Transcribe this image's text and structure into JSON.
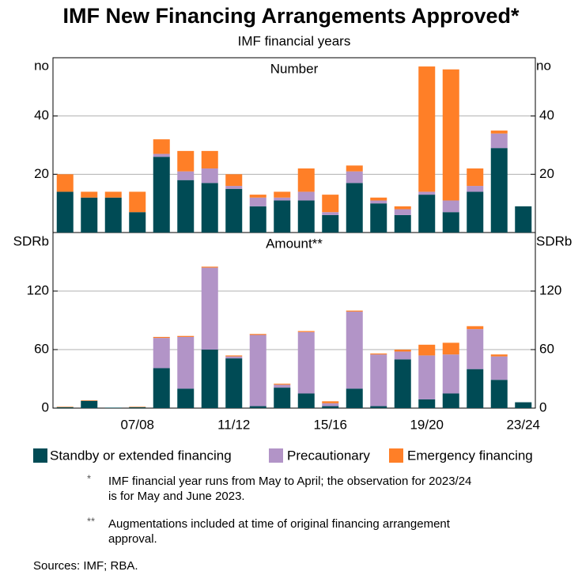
{
  "title": "IMF New Financing Arrangements Approved*",
  "subtitle": "IMF financial years",
  "chart_data": [
    {
      "type": "bar",
      "stacked": true,
      "panel_label": "Number",
      "unit": "no",
      "ylim": [
        0,
        60
      ],
      "yticks": [
        20,
        40
      ],
      "grid": true,
      "series": [
        {
          "name": "Standby or extended financing",
          "color": "#004b55",
          "values": [
            14,
            12,
            12,
            7,
            26,
            18,
            17,
            15,
            9,
            11,
            11,
            6,
            17,
            10,
            6,
            13,
            7,
            14,
            29,
            9
          ]
        },
        {
          "name": "Precautionary",
          "color": "#b294c7",
          "values": [
            0,
            0,
            0,
            0,
            1,
            3,
            5,
            1,
            3,
            1,
            3,
            1,
            4,
            1,
            2,
            1,
            4,
            2,
            5,
            0
          ]
        },
        {
          "name": "Emergency financing",
          "color": "#ff7f27",
          "values": [
            6,
            2,
            2,
            7,
            5,
            7,
            6,
            4,
            1,
            2,
            8,
            6,
            2,
            1,
            1,
            43,
            45,
            6,
            1,
            0
          ]
        }
      ]
    },
    {
      "type": "bar",
      "stacked": true,
      "panel_label": "Amount**",
      "unit": "SDRb",
      "categories": [
        null,
        null,
        null,
        "07/08",
        null,
        null,
        null,
        "11/12",
        null,
        null,
        null,
        "15/16",
        null,
        null,
        null,
        "19/20",
        null,
        null,
        null,
        "23/24"
      ],
      "ylim": [
        0,
        180
      ],
      "yticks": [
        0,
        60,
        120
      ],
      "grid": true,
      "series": [
        {
          "color": "#004b55",
          "values": [
            1,
            7.5,
            0.5,
            1,
            41,
            20,
            60,
            51,
            2,
            21,
            15,
            2,
            20,
            2,
            50,
            9,
            15,
            40,
            29,
            6
          ]
        },
        {
          "color": "#b294c7",
          "values": [
            0,
            0,
            0,
            0,
            31,
            53,
            84,
            2,
            73,
            3,
            63,
            3,
            79,
            53,
            8,
            45,
            40,
            41,
            24,
            0
          ]
        },
        {
          "color": "#ff7f27",
          "values": [
            0.5,
            0.5,
            0,
            0.5,
            1,
            1,
            1,
            1,
            1,
            1,
            1,
            2,
            1,
            1,
            2,
            11,
            12,
            3,
            2,
            0
          ]
        }
      ]
    }
  ],
  "notes": [
    {
      "mark": "*",
      "lines": [
        "IMF financial year runs from May to April; the observation for 2023/24",
        "is for May and June 2023."
      ]
    },
    {
      "mark": "**",
      "lines": [
        "Augmentations included at time of original financing arrangement",
        "approval."
      ]
    }
  ],
  "sources": "Sources: IMF; RBA."
}
